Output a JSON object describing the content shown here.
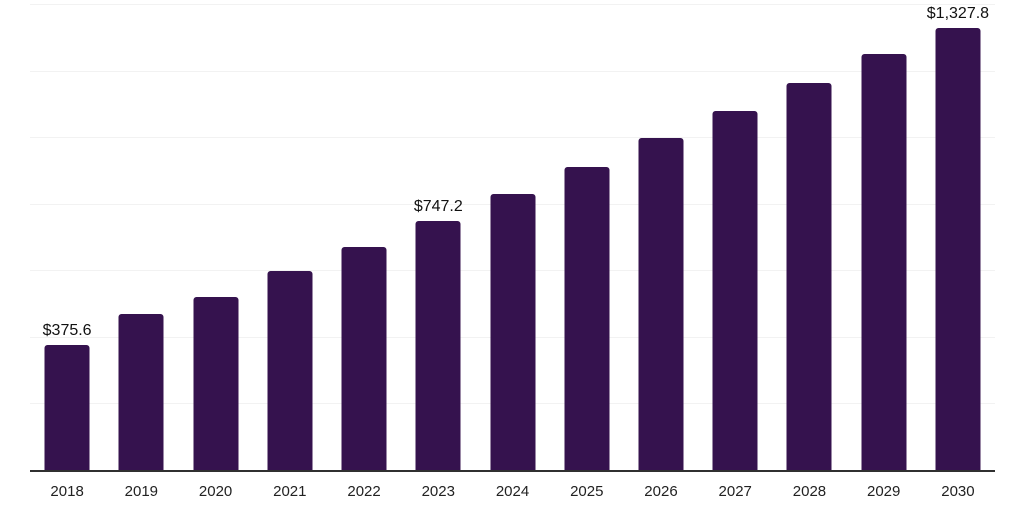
{
  "chart_data": {
    "type": "bar",
    "title": "",
    "xlabel": "",
    "ylabel": "",
    "categories": [
      "2018",
      "2019",
      "2020",
      "2021",
      "2022",
      "2023",
      "2024",
      "2025",
      "2026",
      "2027",
      "2028",
      "2029",
      "2030"
    ],
    "values": [
      375.6,
      469.6,
      520.5,
      597.0,
      670.5,
      747.2,
      828.6,
      910.5,
      996.0,
      1078.5,
      1163.4,
      1250.4,
      1327.8
    ],
    "data_labels": {
      "0": "$375.6",
      "5": "$747.2",
      "12": "$1,327.8"
    },
    "ylim": [
      0,
      1400
    ],
    "gridline_step": 200,
    "grid": "horizontal",
    "legend": "none",
    "y_axis_labels": "none",
    "bar_color": "#35124E"
  },
  "style": {
    "background_color": "#ffffff",
    "gridline_color": "#f2f2f2",
    "axis_line_color": "#303030",
    "x_label_color": "#222222",
    "data_label_color": "#111111"
  }
}
